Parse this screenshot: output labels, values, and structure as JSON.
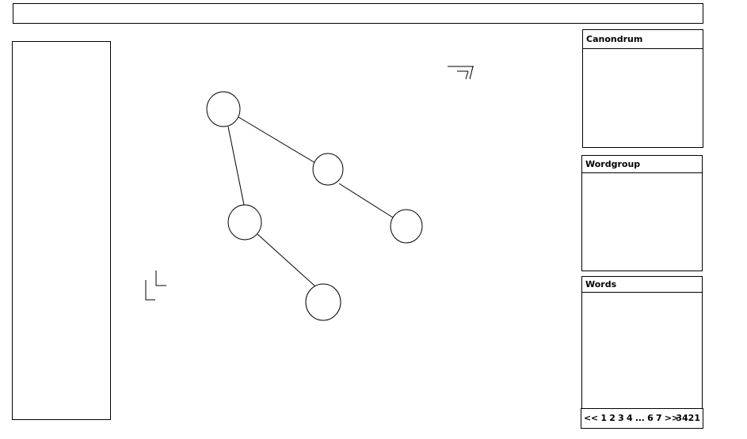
{
  "panels": {
    "canondrum": {
      "title": "Canondrum"
    },
    "wordgroup": {
      "title": "Wordgroup"
    },
    "words": {
      "title": "Words"
    }
  },
  "pagination": {
    "pages_label": "<< 1 2 3 4 ... 6 7 >>",
    "total": "3421"
  },
  "graph": {
    "nodes": [
      "node-1",
      "node-2",
      "node-3",
      "node-4",
      "node-5"
    ],
    "edges": [
      [
        "node-1",
        "node-2"
      ],
      [
        "node-1",
        "node-3"
      ],
      [
        "node-2",
        "node-4"
      ],
      [
        "node-3",
        "node-5"
      ]
    ]
  }
}
